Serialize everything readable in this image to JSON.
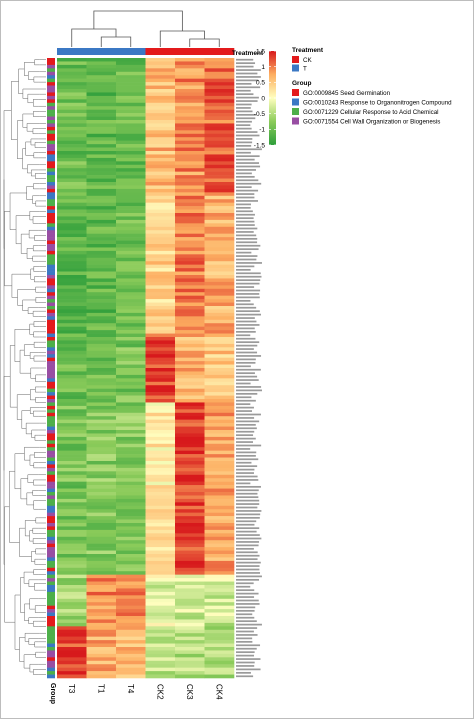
{
  "chart_data": {
    "type": "heatmap",
    "columns": [
      "T3",
      "T1",
      "T4",
      "CK2",
      "CK3",
      "CK4"
    ],
    "column_treatment": [
      "T",
      "T",
      "T",
      "CK",
      "CK",
      "CK"
    ],
    "color_scale": {
      "ticks": [
        "1.5",
        "1",
        "0.5",
        "0",
        "-0.5",
        "-1",
        "-1.5"
      ],
      "colors": [
        "#2e9e3b",
        "#8bcb5a",
        "#ffffbf",
        "#fdae61",
        "#d7191c"
      ]
    },
    "annotation_bars": {
      "treatment_label": "Treatment",
      "group_label": "Group"
    },
    "legend": {
      "treatment": {
        "title": "Treatment",
        "items": [
          {
            "label": "CK",
            "color": "#e31a1c"
          },
          {
            "label": "T",
            "color": "#3b78c4"
          }
        ]
      },
      "group": {
        "title": "Group",
        "items": [
          {
            "label": "GO:0009845 Seed Germination",
            "color": "#e31a1c"
          },
          {
            "label": "GO:0010243 Response to Organonitrogen Compound",
            "color": "#3b78c4"
          },
          {
            "label": "GO:0071229 Cellular Response to Acid Chemical",
            "color": "#4daf4a"
          },
          {
            "label": "GO:0071554 Cell Wall Organization or Biogenesis",
            "color": "#984ea3"
          }
        ]
      }
    },
    "row_count": 180,
    "value_range": [
      -1.5,
      1.5
    ],
    "pattern_blocks": [
      {
        "rows": [
          0,
          40
        ],
        "values": [
          -1.0,
          -1.1,
          -1.0,
          0.6,
          0.9,
          1.1
        ]
      },
      {
        "rows": [
          40,
          80
        ],
        "values": [
          -1.1,
          -1.1,
          -1.0,
          0.4,
          1.0,
          0.7
        ]
      },
      {
        "rows": [
          80,
          100
        ],
        "values": [
          -1.0,
          -1.0,
          -0.9,
          1.3,
          0.7,
          0.5
        ]
      },
      {
        "rows": [
          100,
          150
        ],
        "values": [
          -0.9,
          -0.8,
          -0.8,
          0.2,
          1.3,
          0.8
        ]
      },
      {
        "rows": [
          150,
          165
        ],
        "values": [
          -0.6,
          0.9,
          0.9,
          -0.2,
          -0.3,
          -0.3
        ]
      },
      {
        "rows": [
          165,
          180
        ],
        "values": [
          1.3,
          0.7,
          0.6,
          -0.4,
          -0.5,
          -0.5
        ]
      }
    ]
  }
}
